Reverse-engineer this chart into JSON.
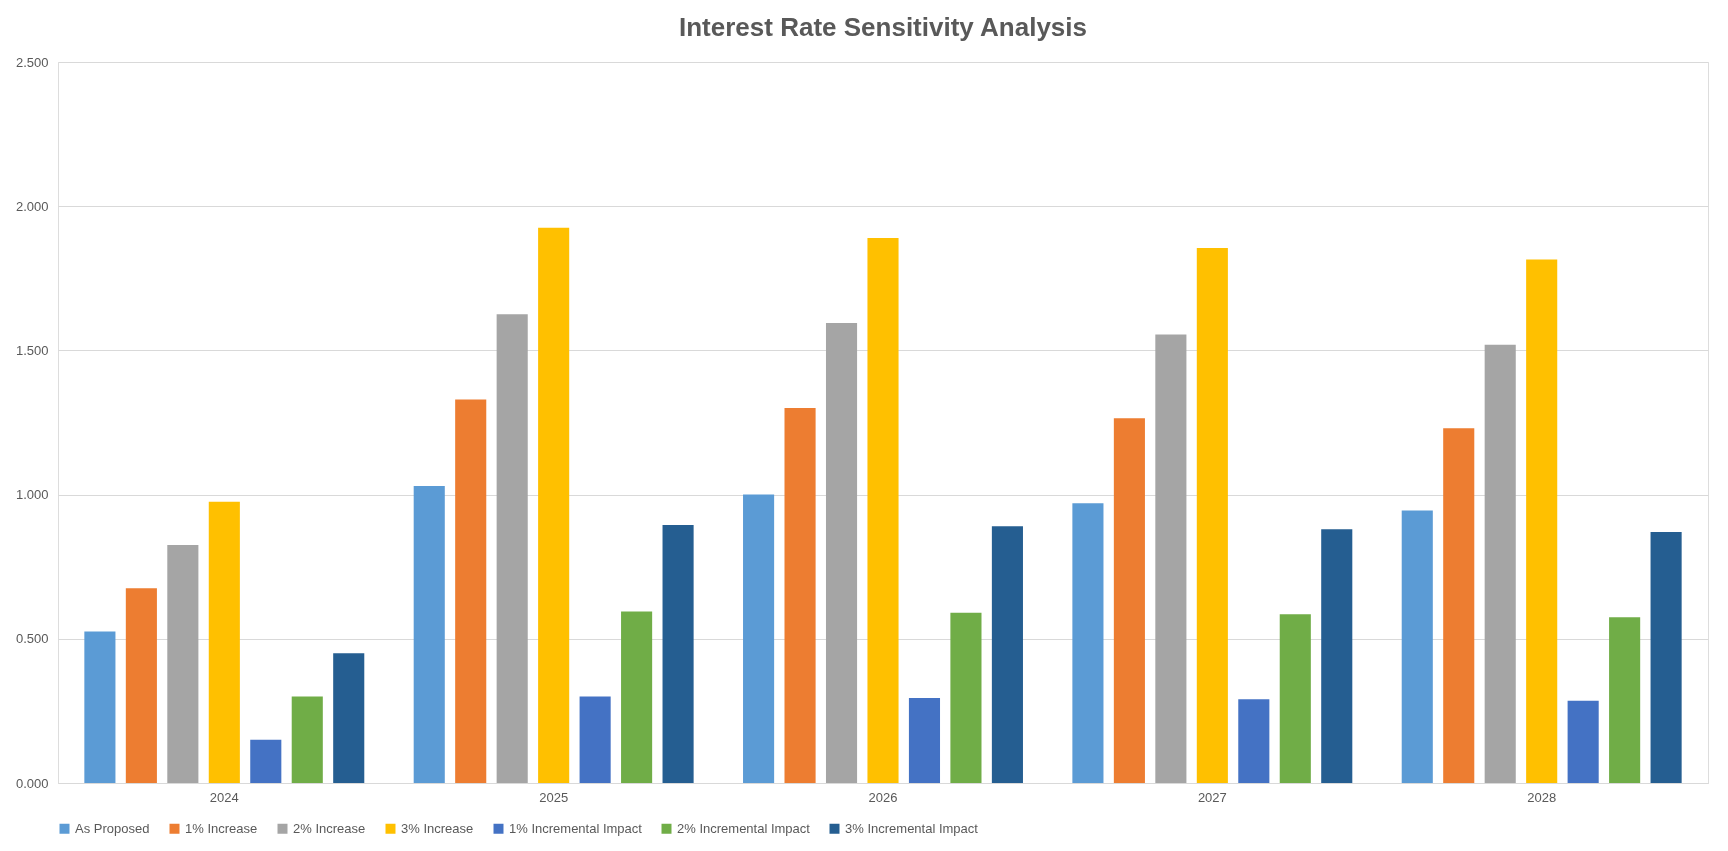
{
  "chart_data": {
    "type": "bar",
    "title": "Interest Rate Sensitivity Analysis",
    "categories": [
      "2024",
      "2025",
      "2026",
      "2027",
      "2028"
    ],
    "series": [
      {
        "name": "As Proposed",
        "color": "#5b9bd5",
        "values": [
          0.525,
          1.03,
          1.0,
          0.97,
          0.945
        ]
      },
      {
        "name": "1% Increase",
        "color": "#ed7d31",
        "values": [
          0.675,
          1.33,
          1.3,
          1.265,
          1.23
        ]
      },
      {
        "name": "2% Increase",
        "color": "#a5a5a5",
        "values": [
          0.825,
          1.625,
          1.595,
          1.555,
          1.52
        ]
      },
      {
        "name": "3% Increase",
        "color": "#ffc000",
        "values": [
          0.975,
          1.925,
          1.89,
          1.855,
          1.815
        ]
      },
      {
        "name": "1% Incremental Impact",
        "color": "#4472c4",
        "values": [
          0.15,
          0.3,
          0.295,
          0.29,
          0.285
        ]
      },
      {
        "name": "2% Incremental Impact",
        "color": "#70ad47",
        "values": [
          0.3,
          0.595,
          0.59,
          0.585,
          0.575
        ]
      },
      {
        "name": "3% Incremental Impact",
        "color": "#255e91",
        "values": [
          0.45,
          0.895,
          0.89,
          0.88,
          0.87
        ]
      }
    ],
    "ylim": [
      0,
      2.5
    ],
    "yticks": [
      {
        "value": 0,
        "label": "0.000"
      },
      {
        "value": 0.5,
        "label": "0.500"
      },
      {
        "value": 1,
        "label": "1.000"
      },
      {
        "value": 1.5,
        "label": "1.500"
      },
      {
        "value": 2,
        "label": "2.000"
      },
      {
        "value": 2.5,
        "label": "2.500"
      }
    ],
    "grid": "y",
    "legend": "bottom"
  }
}
